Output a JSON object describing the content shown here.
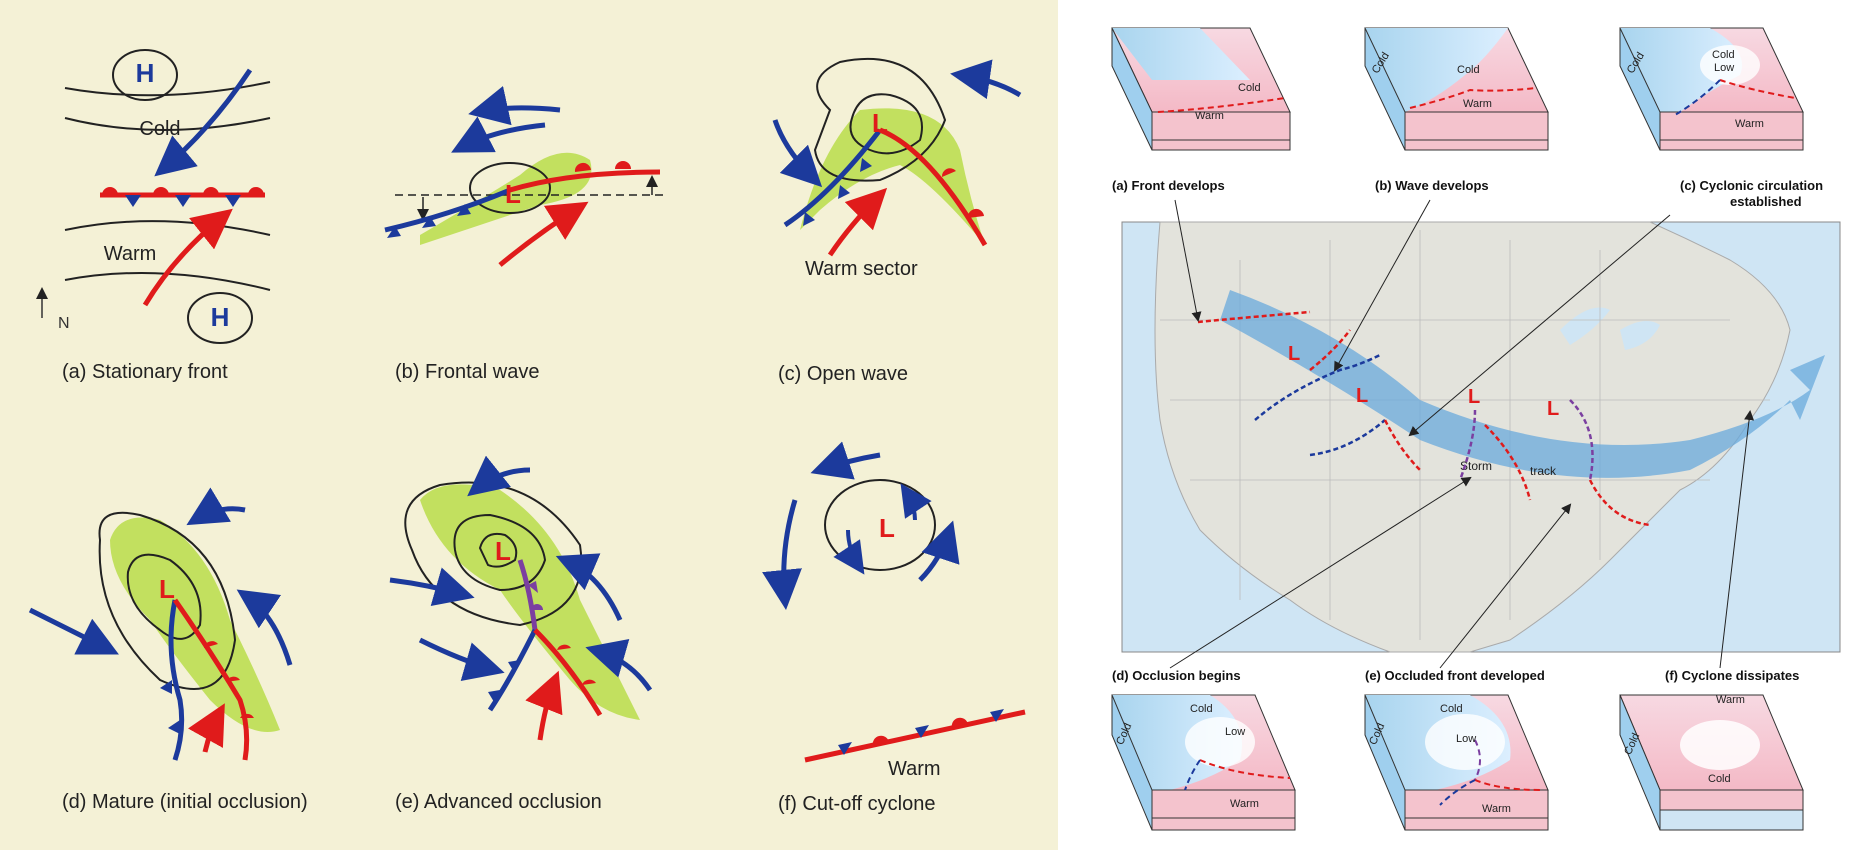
{
  "left_panel": {
    "captions": {
      "a": "(a) Stationary front",
      "b": "(b) Frontal wave",
      "c": "(c) Open wave",
      "d": "(d) Mature (initial occlusion)",
      "e": "(e) Advanced occlusion",
      "f": "(f) Cut-off cyclone"
    },
    "labels": {
      "high": "H",
      "low": "L",
      "cold": "Cold",
      "warm": "Warm",
      "north": "N",
      "warm_sector": "Warm sector"
    }
  },
  "right_panel": {
    "captions": {
      "a": "(a) Front develops",
      "b": "(b) Wave develops",
      "c1": "(c) Cyclonic circulation",
      "c2": "established",
      "d": "(d) Occlusion begins",
      "e": "(e) Occluded front developed",
      "f": "(f) Cyclone dissipates"
    },
    "block_labels": {
      "cold": "Cold",
      "warm": "Warm",
      "low": "Low",
      "cold_low_1": "Cold",
      "cold_low_2": "Low"
    },
    "map": {
      "low": "L",
      "storm": "Storm",
      "track": "track"
    }
  },
  "colors": {
    "cold_front": "#1c3a9c",
    "warm_front": "#e01b1b",
    "occluded_front": "#7b3fa0",
    "warm_sector": "#b9dd4a",
    "paper": "#f4f1d6",
    "storm_track": "#6aa9dc"
  }
}
